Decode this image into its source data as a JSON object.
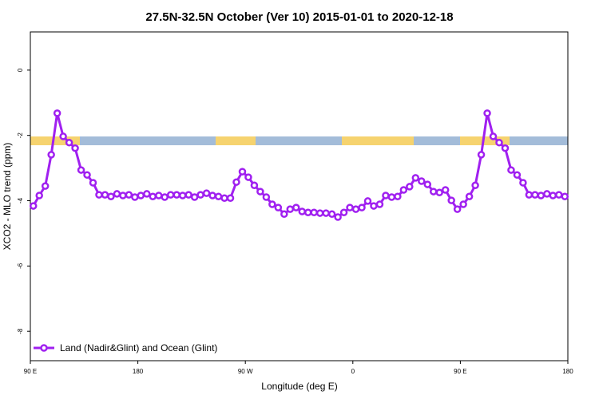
{
  "chart_data": {
    "type": "line",
    "title": "27.5N-32.5N October (Ver 10)   2015-01-01 to 2020-12-18",
    "x_label": "Longitude (deg E)",
    "y_label": "XCO2 - MLO trend (ppm)",
    "xlim": [
      90,
      540
    ],
    "xticks": [
      {
        "value": 90,
        "label": "90 E"
      },
      {
        "value": 180,
        "label": "180"
      },
      {
        "value": 270,
        "label": "90 W"
      },
      {
        "value": 360,
        "label": "0"
      },
      {
        "value": 450,
        "label": "90 E"
      },
      {
        "value": 540,
        "label": "180"
      }
    ],
    "ylim": [
      -8.9,
      1.17
    ],
    "yticks": [
      0,
      -2,
      -4,
      -6,
      -8
    ],
    "legend": "bottom-left",
    "x": [
      92.5,
      97.5,
      102.5,
      107.5,
      112.5,
      117.5,
      122.5,
      127.5,
      132.5,
      137.5,
      142.5,
      147.5,
      152.5,
      157.5,
      162.5,
      167.5,
      172.5,
      177.5,
      182.5,
      187.5,
      192.5,
      197.5,
      202.5,
      207.5,
      212.5,
      217.5,
      222.5,
      227.5,
      232.5,
      237.5,
      242.5,
      247.5,
      252.5,
      257.5,
      262.5,
      267.5,
      272.5,
      277.5,
      282.5,
      287.5,
      292.5,
      297.5,
      302.5,
      307.5,
      312.5,
      317.5,
      322.5,
      327.5,
      332.5,
      337.5,
      342.5,
      347.5,
      352.5,
      357.5,
      362.5,
      367.5,
      372.5,
      377.5,
      382.5,
      387.5,
      392.5,
      397.5,
      402.5,
      407.5,
      412.5,
      417.5,
      422.5,
      427.5,
      432.5,
      437.5,
      442.5,
      447.5,
      452.5,
      457.5,
      462.5,
      467.5,
      472.5,
      477.5,
      482.5,
      487.5,
      492.5,
      497.5,
      502.5,
      507.5,
      512.5,
      517.5,
      522.5,
      527.5,
      532.5,
      537.5
    ],
    "series": [
      {
        "name": "Land (Nadir&Glint) and Ocean (Glint)",
        "color": "#a020f0",
        "values": [
          -4.16,
          -3.84,
          -3.55,
          -2.59,
          -1.32,
          -2.03,
          -2.22,
          -2.39,
          -3.06,
          -3.21,
          -3.45,
          -3.82,
          -3.82,
          -3.87,
          -3.79,
          -3.84,
          -3.82,
          -3.89,
          -3.84,
          -3.79,
          -3.87,
          -3.84,
          -3.89,
          -3.82,
          -3.82,
          -3.84,
          -3.82,
          -3.89,
          -3.82,
          -3.77,
          -3.84,
          -3.87,
          -3.92,
          -3.92,
          -3.43,
          -3.11,
          -3.28,
          -3.53,
          -3.72,
          -3.89,
          -4.11,
          -4.21,
          -4.41,
          -4.26,
          -4.21,
          -4.33,
          -4.36,
          -4.36,
          -4.38,
          -4.38,
          -4.41,
          -4.5,
          -4.36,
          -4.21,
          -4.26,
          -4.21,
          -4.01,
          -4.16,
          -4.11,
          -3.84,
          -3.89,
          -3.87,
          -3.67,
          -3.57,
          -3.3,
          -3.4,
          -3.5,
          -3.72,
          -3.75,
          -3.67,
          -3.99,
          -4.26,
          -4.11,
          -3.87,
          -3.53,
          -2.59,
          -1.32,
          -2.03,
          -2.22,
          -2.39,
          -3.06,
          -3.21,
          -3.45,
          -3.82,
          -3.82,
          -3.84,
          -3.79,
          -3.84,
          -3.82,
          -3.87
        ]
      }
    ]
  }
}
